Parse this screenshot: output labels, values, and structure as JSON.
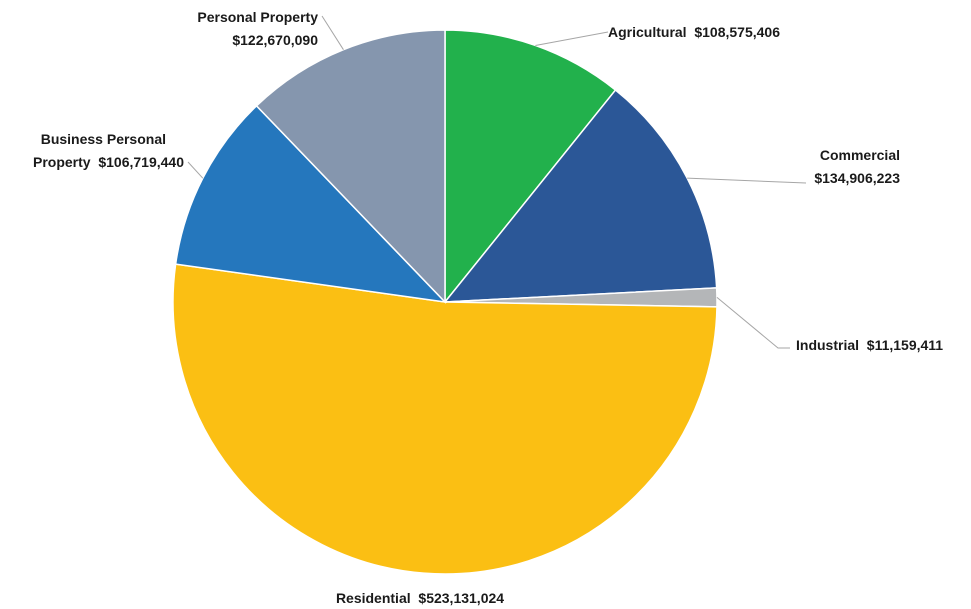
{
  "chart_data": {
    "type": "pie",
    "title": "",
    "slices": [
      {
        "name": "Agricultural",
        "value": 108575406,
        "label": "$108,575,406",
        "color": "#22b14c"
      },
      {
        "name": "Commercial",
        "value": 134906223,
        "label": "$134,906,223",
        "color": "#2b5797"
      },
      {
        "name": "Industrial",
        "value": 11159411,
        "label": "$11,159,411",
        "color": "#b4b6b8"
      },
      {
        "name": "Residential",
        "value": 523131024,
        "label": "$523,131,024",
        "color": "#fbbf13"
      },
      {
        "name": "Business Personal Property",
        "value": 106719440,
        "label": "$106,719,440",
        "color": "#2577bd"
      },
      {
        "name": "Personal Property",
        "value": 122670090,
        "label": "$122,670,090",
        "color": "#8596ae"
      }
    ]
  }
}
